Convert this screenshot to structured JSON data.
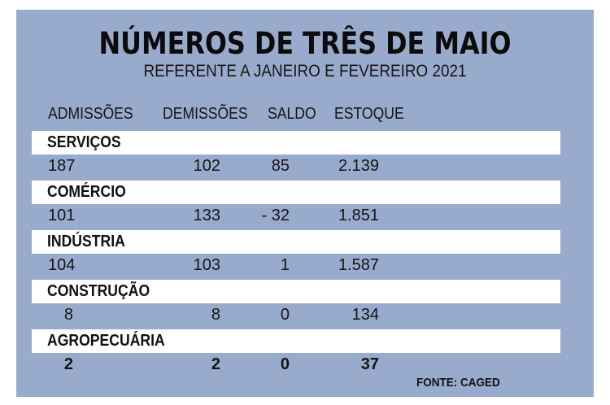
{
  "title": "NÚMEROS DE TRÊS DE MAIO",
  "subtitle": "REFERENTE A JANEIRO E FEVEREIRO 2021",
  "columns": [
    "ADMISSÕES",
    "DEMISSÕES",
    "SALDO",
    "ESTOQUE"
  ],
  "sectors": [
    {
      "name": "SERVIÇOS",
      "admissoes": "187",
      "demissoes": "102",
      "saldo": "85",
      "estoque": "2.139"
    },
    {
      "name": "COMÉRCIO",
      "admissoes": "101",
      "demissoes": "133",
      "saldo": "- 32",
      "estoque": "1.851"
    },
    {
      "name": "INDÚSTRIA",
      "admissoes": "104",
      "demissoes": "103",
      "saldo": "1",
      "estoque": "1.587"
    },
    {
      "name": "CONSTRUÇÃO",
      "admissoes": "8",
      "demissoes": "8",
      "saldo": "0",
      "estoque": "134"
    },
    {
      "name": "AGROPECUÁRIA",
      "admissoes": "2",
      "demissoes": "2",
      "saldo": "0",
      "estoque": "37"
    }
  ],
  "source": "FONTE: CAGED",
  "colors": {
    "panel": "#99abcc",
    "band": "#ffffff",
    "text": "#151515"
  }
}
